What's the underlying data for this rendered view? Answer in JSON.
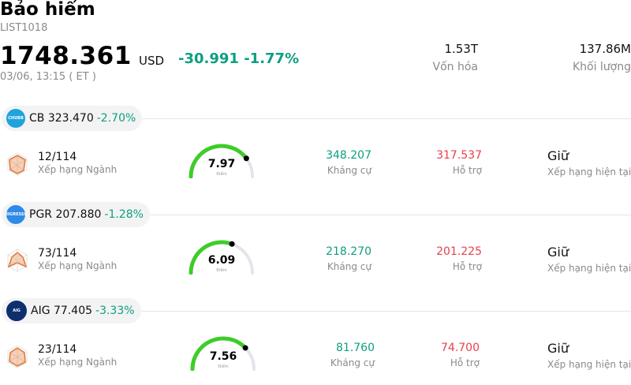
{
  "header": {
    "title": "Bảo hiểm",
    "code": "LIST1018",
    "price": "1748.361",
    "currency": "USD",
    "change": "-30.991 -1.77%",
    "timestamp": "03/06, 13:15  ( ET )",
    "stats": [
      {
        "value": "1.53T",
        "label": "Vốn hóa"
      },
      {
        "value": "137.86M",
        "label": "Khối lượng"
      }
    ]
  },
  "colors": {
    "positive_change": "#0e9e82",
    "resistance": "#0e9e82",
    "support": "#e8404c",
    "gauge_fill": "#3fcc2a",
    "gauge_track": "#e4e4ec"
  },
  "stocks": [
    {
      "ticker": "CB",
      "price": "323.470",
      "change": "-2.70%",
      "logo_text": "CHUBB",
      "logo_color": "#1fa3dc",
      "rank": "12/114",
      "rank_label": "Xếp hạng Ngành",
      "score": "7.97",
      "score_fraction": 0.797,
      "score_label": "Điểm",
      "resistance": "348.207",
      "resistance_label": "Kháng cự",
      "support": "317.537",
      "support_label": "Hỗ trợ",
      "rating": "Giữ",
      "rating_label": "Xếp hạng hiện tại"
    },
    {
      "ticker": "PGR",
      "price": "207.880",
      "change": "-1.28%",
      "logo_text": "PROGRESSIVE",
      "logo_color": "#2f8ae8",
      "rank": "73/114",
      "rank_label": "Xếp hạng Ngành",
      "score": "6.09",
      "score_fraction": 0.609,
      "score_label": "Điểm",
      "resistance": "218.270",
      "resistance_label": "Kháng cự",
      "support": "201.225",
      "support_label": "Hỗ trợ",
      "rating": "Giữ",
      "rating_label": "Xếp hạng hiện tại"
    },
    {
      "ticker": "AIG",
      "price": "77.405",
      "change": "-3.33%",
      "logo_text": "AIG",
      "logo_color": "#0d2f6e",
      "rank": "23/114",
      "rank_label": "Xếp hạng Ngành",
      "score": "7.56",
      "score_fraction": 0.756,
      "score_label": "Điểm",
      "resistance": "81.760",
      "resistance_label": "Kháng cự",
      "support": "74.700",
      "support_label": "Hỗ trợ",
      "rating": "Giữ",
      "rating_label": "Xếp hạng hiện tại"
    }
  ]
}
